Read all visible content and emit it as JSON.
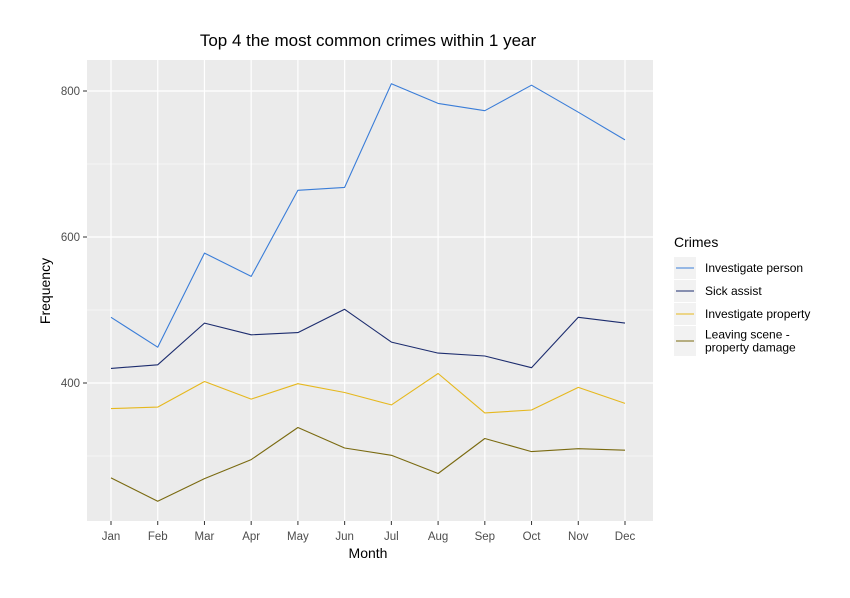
{
  "chart_data": {
    "type": "line",
    "title": "Top 4 the most common crimes within 1 year",
    "xlabel": "Month",
    "ylabel": "Frequency",
    "categories": [
      "Jan",
      "Feb",
      "Mar",
      "Apr",
      "May",
      "Jun",
      "Jul",
      "Aug",
      "Sep",
      "Oct",
      "Nov",
      "Dec"
    ],
    "yticks": [
      400,
      600,
      800
    ],
    "ylim": [
      225,
      840
    ],
    "grid": true,
    "legend": {
      "title": "Crimes",
      "position": "right"
    },
    "series": [
      {
        "name": "Investigate person",
        "color": "#3a7dd8",
        "values": [
          490,
          449,
          578,
          546,
          664,
          668,
          810,
          783,
          773,
          808,
          771,
          733
        ]
      },
      {
        "name": "Sick assist",
        "color": "#1c2c6e",
        "values": [
          420,
          425,
          482,
          466,
          469,
          501,
          456,
          441,
          437,
          421,
          490,
          482
        ]
      },
      {
        "name": "Investigate property",
        "color": "#e6b81e",
        "values": [
          365,
          367,
          402,
          378,
          399,
          387,
          370,
          413,
          359,
          363,
          394,
          372
        ]
      },
      {
        "name": "Leaving scene - \n property damage",
        "color": "#7a6a10",
        "values": [
          270,
          238,
          269,
          295,
          339,
          311,
          301,
          276,
          324,
          306,
          310,
          308
        ]
      }
    ]
  }
}
